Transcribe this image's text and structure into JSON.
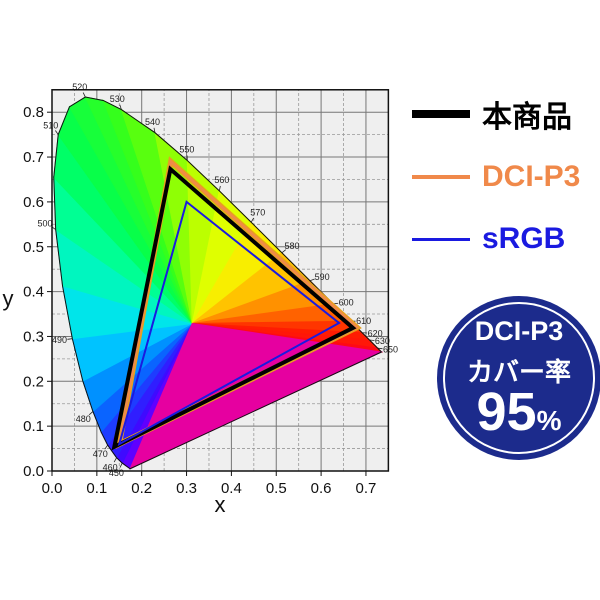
{
  "chart_data": {
    "type": "scatter",
    "subtype": "CIE 1931 chromaticity diagram with gamut triangles",
    "xlabel": "x",
    "ylabel": "y",
    "xlim": [
      0.0,
      0.75
    ],
    "ylim": [
      0.0,
      0.85
    ],
    "xticks": [
      "0.0",
      "0.1",
      "0.2",
      "0.3",
      "0.4",
      "0.5",
      "0.6",
      "0.7"
    ],
    "yticks": [
      "0.0",
      "0.1",
      "0.2",
      "0.3",
      "0.4",
      "0.5",
      "0.6",
      "0.7",
      "0.8"
    ],
    "grid": true,
    "spectral_locus": [
      {
        "nm": 380,
        "x": 0.1741,
        "y": 0.005
      },
      {
        "nm": 450,
        "x": 0.1566,
        "y": 0.0177
      },
      {
        "nm": 460,
        "x": 0.144,
        "y": 0.0297
      },
      {
        "nm": 470,
        "x": 0.1241,
        "y": 0.0578
      },
      {
        "nm": 475,
        "x": 0.1096,
        "y": 0.0868
      },
      {
        "nm": 480,
        "x": 0.0913,
        "y": 0.1327
      },
      {
        "nm": 485,
        "x": 0.0687,
        "y": 0.2007
      },
      {
        "nm": 490,
        "x": 0.0454,
        "y": 0.295
      },
      {
        "nm": 495,
        "x": 0.0235,
        "y": 0.4127
      },
      {
        "nm": 500,
        "x": 0.0082,
        "y": 0.5384
      },
      {
        "nm": 505,
        "x": 0.0039,
        "y": 0.6548
      },
      {
        "nm": 510,
        "x": 0.0139,
        "y": 0.7502
      },
      {
        "nm": 515,
        "x": 0.0389,
        "y": 0.812
      },
      {
        "nm": 520,
        "x": 0.0743,
        "y": 0.8338
      },
      {
        "nm": 525,
        "x": 0.1142,
        "y": 0.8262
      },
      {
        "nm": 530,
        "x": 0.1547,
        "y": 0.8059
      },
      {
        "nm": 540,
        "x": 0.2296,
        "y": 0.7543
      },
      {
        "nm": 550,
        "x": 0.3016,
        "y": 0.6923
      },
      {
        "nm": 560,
        "x": 0.3731,
        "y": 0.6245
      },
      {
        "nm": 570,
        "x": 0.4441,
        "y": 0.5547
      },
      {
        "nm": 580,
        "x": 0.5125,
        "y": 0.4866
      },
      {
        "nm": 590,
        "x": 0.5752,
        "y": 0.4242
      },
      {
        "nm": 600,
        "x": 0.627,
        "y": 0.3725
      },
      {
        "nm": 610,
        "x": 0.6658,
        "y": 0.334
      },
      {
        "nm": 620,
        "x": 0.6915,
        "y": 0.3083
      },
      {
        "nm": 630,
        "x": 0.7079,
        "y": 0.292
      },
      {
        "nm": 650,
        "x": 0.726,
        "y": 0.274
      },
      {
        "nm": 700,
        "x": 0.7347,
        "y": 0.2653
      }
    ],
    "wavelength_labels": [
      "450",
      "460",
      "470",
      "480",
      "490",
      "500",
      "510",
      "520",
      "530",
      "540",
      "550",
      "560",
      "570",
      "580",
      "590",
      "600",
      "610",
      "620",
      "630",
      "650"
    ],
    "series": [
      {
        "name": "本商品",
        "color": "#000000",
        "points": [
          [
            0.264,
            0.673
          ],
          [
            0.671,
            0.319
          ],
          [
            0.139,
            0.054
          ]
        ]
      },
      {
        "name": "DCI-P3",
        "color": "#f0894a",
        "points": [
          [
            0.265,
            0.69
          ],
          [
            0.68,
            0.32
          ],
          [
            0.15,
            0.06
          ]
        ]
      },
      {
        "name": "sRGB",
        "color": "#1a1ae0",
        "points": [
          [
            0.3,
            0.6
          ],
          [
            0.64,
            0.33
          ],
          [
            0.15,
            0.06
          ]
        ]
      }
    ]
  },
  "legend": [
    {
      "label": "本商品",
      "color": "#000000"
    },
    {
      "label": "DCI-P3",
      "color": "#f0894a"
    },
    {
      "label": "sRGB",
      "color": "#1a1ae0"
    }
  ],
  "badge": {
    "line1": "DCI-P3",
    "line2": "カバー率",
    "value": "95",
    "unit": "%",
    "color": "#1c2b8c"
  }
}
